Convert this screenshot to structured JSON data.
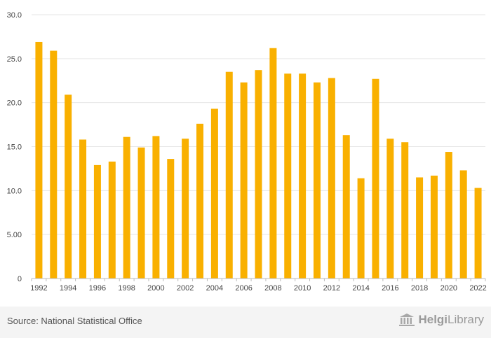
{
  "chart_data": {
    "type": "bar",
    "title": "",
    "xlabel": "",
    "ylabel": "",
    "categories": [
      "1992",
      "1993",
      "1994",
      "1995",
      "1996",
      "1997",
      "1998",
      "1999",
      "2000",
      "2001",
      "2002",
      "2003",
      "2004",
      "2005",
      "2006",
      "2007",
      "2008",
      "2009",
      "2010",
      "2011",
      "2012",
      "2013",
      "2014",
      "2015",
      "2016",
      "2017",
      "2018",
      "2019",
      "2020",
      "2021",
      "2022"
    ],
    "x_tick_labels": [
      "1992",
      "1994",
      "1996",
      "1998",
      "2000",
      "2002",
      "2004",
      "2006",
      "2008",
      "2010",
      "2012",
      "2014",
      "2016",
      "2018",
      "2020",
      "2022"
    ],
    "values": [
      26.9,
      25.9,
      20.9,
      15.8,
      12.9,
      13.3,
      16.1,
      14.9,
      16.2,
      13.6,
      15.9,
      17.6,
      19.3,
      23.5,
      22.3,
      23.7,
      26.2,
      23.3,
      23.3,
      22.3,
      22.8,
      16.3,
      11.4,
      22.7,
      15.9,
      15.5,
      11.5,
      11.7,
      14.4,
      12.3,
      10.3
    ],
    "y_ticks": [
      {
        "value": 0,
        "label": "0"
      },
      {
        "value": 5,
        "label": "5.00"
      },
      {
        "value": 10,
        "label": "10.0"
      },
      {
        "value": 15,
        "label": "15.0"
      },
      {
        "value": 20,
        "label": "20.0"
      },
      {
        "value": 25,
        "label": "25.0"
      },
      {
        "value": 30,
        "label": "30.0"
      }
    ],
    "ylim": [
      0,
      30
    ],
    "grid": true,
    "bar_color": "#f9b000",
    "grid_color": "#e6e6e6"
  },
  "footer": {
    "source": "Source: National Statistical Office",
    "logo_part1": "Helgi",
    "logo_part2": "Library",
    "logo_icon": "library-building-icon"
  }
}
